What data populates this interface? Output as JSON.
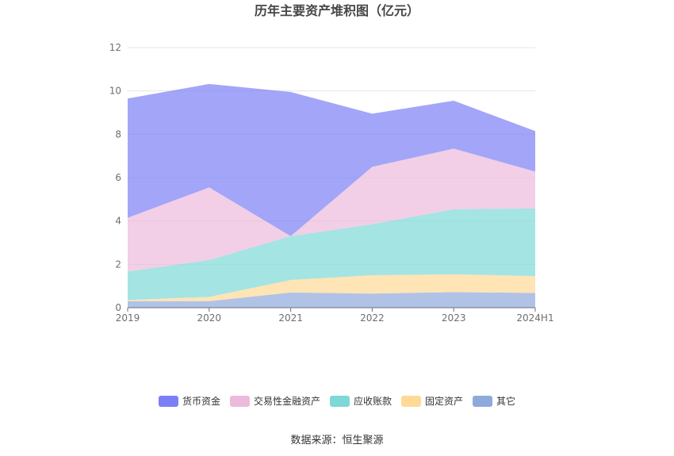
{
  "chart_data": {
    "type": "area",
    "title": "历年主要资产堆积图（亿元）",
    "categories": [
      "2019",
      "2020",
      "2021",
      "2022",
      "2023",
      "2024H1"
    ],
    "ylim": [
      0,
      12
    ],
    "yticks": [
      "0",
      "2",
      "4",
      "6",
      "8",
      "10",
      "12"
    ],
    "grid": true,
    "legend_position": "bottom",
    "stacked": true,
    "series": [
      {
        "name": "其它",
        "color": "#8eaadb",
        "values": [
          0.3,
          0.3,
          0.7,
          0.65,
          0.72,
          0.68
        ]
      },
      {
        "name": "固定资产",
        "color": "#ffd996",
        "values": [
          0.05,
          0.2,
          0.58,
          0.85,
          0.82,
          0.78
        ]
      },
      {
        "name": "应收账款",
        "color": "#7dd8d7",
        "values": [
          1.32,
          1.7,
          2.02,
          2.35,
          3.0,
          3.12
        ]
      },
      {
        "name": "交易性金融资产",
        "color": "#ecbadc",
        "values": [
          2.48,
          3.35,
          0.0,
          2.65,
          2.8,
          1.7
        ]
      },
      {
        "name": "货币资金",
        "color": "#7b7ff5",
        "values": [
          5.5,
          4.77,
          6.65,
          2.45,
          2.21,
          1.87
        ]
      }
    ],
    "source": "数据来源：恒生聚源"
  }
}
